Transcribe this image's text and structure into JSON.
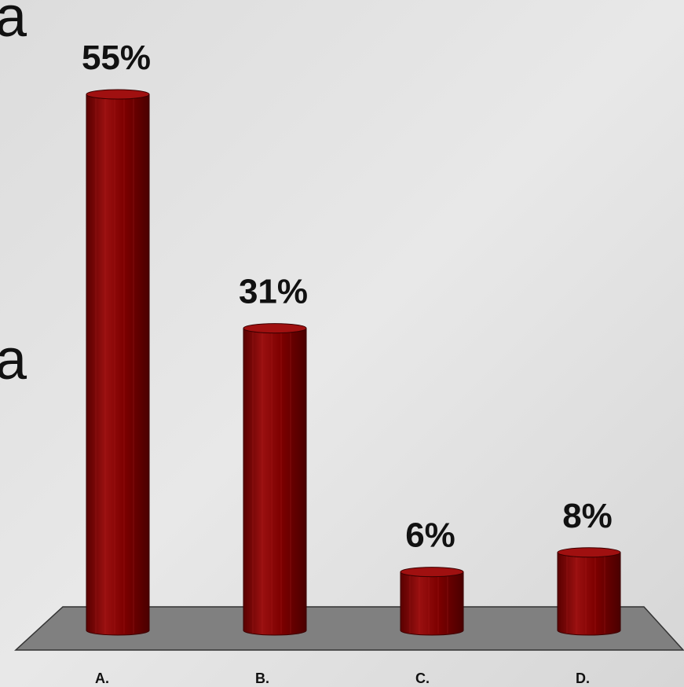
{
  "chart_data": {
    "type": "bar",
    "style": "3d-cylinder",
    "categories": [
      "A.",
      "B.",
      "C.",
      "D."
    ],
    "values": [
      55,
      31,
      6,
      8
    ],
    "value_labels": [
      "55%",
      "31%",
      "6%",
      "8%"
    ],
    "color": "#8b0000",
    "annotations": [
      "a",
      "a"
    ]
  }
}
